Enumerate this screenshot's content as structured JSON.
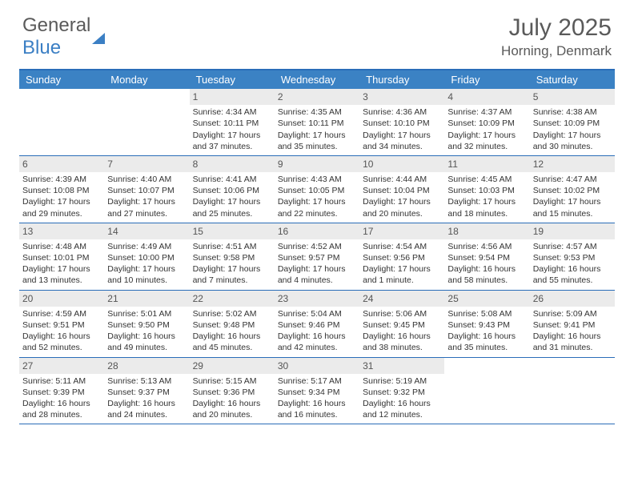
{
  "brand": {
    "part1": "General",
    "part2": "Blue"
  },
  "title": "July 2025",
  "location": "Horning, Denmark",
  "colors": {
    "header_bg": "#3b82c4",
    "border": "#2a6db8",
    "daynum_bg": "#ebebeb",
    "text": "#333333",
    "muted": "#5a5a5a",
    "white": "#ffffff"
  },
  "dow": [
    "Sunday",
    "Monday",
    "Tuesday",
    "Wednesday",
    "Thursday",
    "Friday",
    "Saturday"
  ],
  "weeks": [
    [
      null,
      null,
      {
        "n": "1",
        "sr": "4:34 AM",
        "ss": "10:11 PM",
        "dl": "17 hours and 37 minutes."
      },
      {
        "n": "2",
        "sr": "4:35 AM",
        "ss": "10:11 PM",
        "dl": "17 hours and 35 minutes."
      },
      {
        "n": "3",
        "sr": "4:36 AM",
        "ss": "10:10 PM",
        "dl": "17 hours and 34 minutes."
      },
      {
        "n": "4",
        "sr": "4:37 AM",
        "ss": "10:09 PM",
        "dl": "17 hours and 32 minutes."
      },
      {
        "n": "5",
        "sr": "4:38 AM",
        "ss": "10:09 PM",
        "dl": "17 hours and 30 minutes."
      }
    ],
    [
      {
        "n": "6",
        "sr": "4:39 AM",
        "ss": "10:08 PM",
        "dl": "17 hours and 29 minutes."
      },
      {
        "n": "7",
        "sr": "4:40 AM",
        "ss": "10:07 PM",
        "dl": "17 hours and 27 minutes."
      },
      {
        "n": "8",
        "sr": "4:41 AM",
        "ss": "10:06 PM",
        "dl": "17 hours and 25 minutes."
      },
      {
        "n": "9",
        "sr": "4:43 AM",
        "ss": "10:05 PM",
        "dl": "17 hours and 22 minutes."
      },
      {
        "n": "10",
        "sr": "4:44 AM",
        "ss": "10:04 PM",
        "dl": "17 hours and 20 minutes."
      },
      {
        "n": "11",
        "sr": "4:45 AM",
        "ss": "10:03 PM",
        "dl": "17 hours and 18 minutes."
      },
      {
        "n": "12",
        "sr": "4:47 AM",
        "ss": "10:02 PM",
        "dl": "17 hours and 15 minutes."
      }
    ],
    [
      {
        "n": "13",
        "sr": "4:48 AM",
        "ss": "10:01 PM",
        "dl": "17 hours and 13 minutes."
      },
      {
        "n": "14",
        "sr": "4:49 AM",
        "ss": "10:00 PM",
        "dl": "17 hours and 10 minutes."
      },
      {
        "n": "15",
        "sr": "4:51 AM",
        "ss": "9:58 PM",
        "dl": "17 hours and 7 minutes."
      },
      {
        "n": "16",
        "sr": "4:52 AM",
        "ss": "9:57 PM",
        "dl": "17 hours and 4 minutes."
      },
      {
        "n": "17",
        "sr": "4:54 AM",
        "ss": "9:56 PM",
        "dl": "17 hours and 1 minute."
      },
      {
        "n": "18",
        "sr": "4:56 AM",
        "ss": "9:54 PM",
        "dl": "16 hours and 58 minutes."
      },
      {
        "n": "19",
        "sr": "4:57 AM",
        "ss": "9:53 PM",
        "dl": "16 hours and 55 minutes."
      }
    ],
    [
      {
        "n": "20",
        "sr": "4:59 AM",
        "ss": "9:51 PM",
        "dl": "16 hours and 52 minutes."
      },
      {
        "n": "21",
        "sr": "5:01 AM",
        "ss": "9:50 PM",
        "dl": "16 hours and 49 minutes."
      },
      {
        "n": "22",
        "sr": "5:02 AM",
        "ss": "9:48 PM",
        "dl": "16 hours and 45 minutes."
      },
      {
        "n": "23",
        "sr": "5:04 AM",
        "ss": "9:46 PM",
        "dl": "16 hours and 42 minutes."
      },
      {
        "n": "24",
        "sr": "5:06 AM",
        "ss": "9:45 PM",
        "dl": "16 hours and 38 minutes."
      },
      {
        "n": "25",
        "sr": "5:08 AM",
        "ss": "9:43 PM",
        "dl": "16 hours and 35 minutes."
      },
      {
        "n": "26",
        "sr": "5:09 AM",
        "ss": "9:41 PM",
        "dl": "16 hours and 31 minutes."
      }
    ],
    [
      {
        "n": "27",
        "sr": "5:11 AM",
        "ss": "9:39 PM",
        "dl": "16 hours and 28 minutes."
      },
      {
        "n": "28",
        "sr": "5:13 AM",
        "ss": "9:37 PM",
        "dl": "16 hours and 24 minutes."
      },
      {
        "n": "29",
        "sr": "5:15 AM",
        "ss": "9:36 PM",
        "dl": "16 hours and 20 minutes."
      },
      {
        "n": "30",
        "sr": "5:17 AM",
        "ss": "9:34 PM",
        "dl": "16 hours and 16 minutes."
      },
      {
        "n": "31",
        "sr": "5:19 AM",
        "ss": "9:32 PM",
        "dl": "16 hours and 12 minutes."
      },
      null,
      null
    ]
  ],
  "labels": {
    "sunrise": "Sunrise:",
    "sunset": "Sunset:",
    "daylight": "Daylight:"
  }
}
